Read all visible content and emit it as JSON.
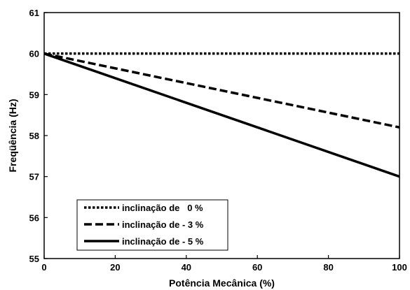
{
  "chart_data": {
    "type": "line",
    "title": "",
    "xlabel": "Potência Mecânica (%)",
    "ylabel": "Freqüência (Hz)",
    "xlim": [
      0,
      100
    ],
    "ylim": [
      55,
      61
    ],
    "x_ticks": [
      0,
      20,
      40,
      60,
      80,
      100
    ],
    "y_ticks": [
      55,
      56,
      57,
      58,
      59,
      60,
      61
    ],
    "grid": false,
    "legend_position": "bottom-left",
    "series": [
      {
        "name": "inclinação de   0 %",
        "style": "dotted",
        "color": "#000000",
        "x": [
          0,
          100
        ],
        "y": [
          60.0,
          60.0
        ]
      },
      {
        "name": "inclinação de - 3 %",
        "style": "dashed",
        "color": "#000000",
        "x": [
          0,
          100
        ],
        "y": [
          60.0,
          58.2
        ]
      },
      {
        "name": "inclinação de - 5 %",
        "style": "solid",
        "color": "#000000",
        "x": [
          0,
          100
        ],
        "y": [
          60.0,
          57.0
        ]
      }
    ]
  }
}
